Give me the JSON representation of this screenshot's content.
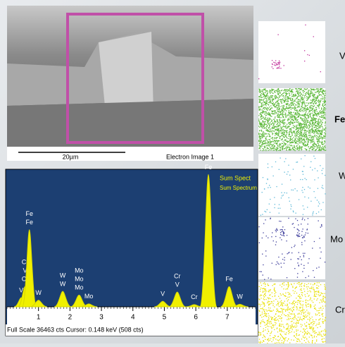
{
  "electron_image": {
    "scale_bar": "20µm",
    "caption": "Electron Image 1"
  },
  "spectrum": {
    "legend": [
      "Sum Spect",
      "Sum Spectrum"
    ],
    "footer": "Full Scale 36463 cts  Cursor: 0.148 keV (508 cts)",
    "xlim": [
      0,
      7.9
    ],
    "ylim": [
      0,
      36463
    ],
    "xticks": [
      1,
      2,
      3,
      4,
      5,
      6,
      7
    ],
    "peaks": [
      {
        "energy": 0.45,
        "counts": 2500,
        "labels": [
          "V"
        ]
      },
      {
        "energy": 0.57,
        "counts": 5500,
        "labels": [
          "Cr",
          "V",
          "Cr"
        ]
      },
      {
        "energy": 0.71,
        "counts": 21000,
        "labels": [
          "Fe",
          "Fe"
        ]
      },
      {
        "energy": 1.0,
        "counts": 1800,
        "labels": [
          "W"
        ]
      },
      {
        "energy": 1.77,
        "counts": 4200,
        "labels": [
          "W",
          "W"
        ]
      },
      {
        "energy": 2.29,
        "counts": 3200,
        "labels": [
          "Mo",
          "Mo",
          "Mo"
        ]
      },
      {
        "energy": 2.6,
        "counts": 800,
        "labels": [
          "Mo"
        ]
      },
      {
        "energy": 4.95,
        "counts": 1500,
        "labels": [
          "V"
        ]
      },
      {
        "energy": 5.41,
        "counts": 4000,
        "labels": [
          "Cr",
          "V"
        ]
      },
      {
        "energy": 5.95,
        "counts": 600,
        "labels": [
          "Cr"
        ]
      },
      {
        "energy": 6.4,
        "counts": 36000,
        "labels": [
          "Fe"
        ]
      },
      {
        "energy": 7.06,
        "counts": 5500,
        "labels": [
          "Fe"
        ]
      },
      {
        "energy": 7.4,
        "counts": 700,
        "labels": [
          "W"
        ]
      }
    ]
  },
  "maps": [
    {
      "label": "V",
      "color": "#c0309a"
    },
    {
      "label": "Fe",
      "color": "#5cb83a"
    },
    {
      "label": "W",
      "color": "#5ab8d8"
    },
    {
      "label": "Mo",
      "color": "#3a3a9a"
    },
    {
      "label": "Cr",
      "color": "#e8e000"
    }
  ]
}
